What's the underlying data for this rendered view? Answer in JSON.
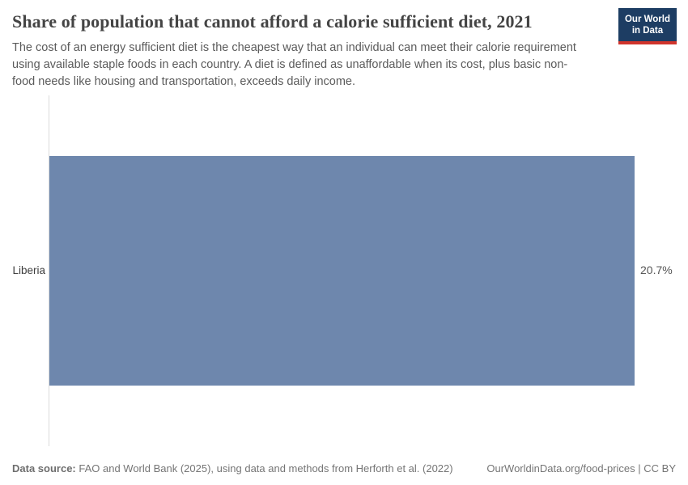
{
  "header": {
    "title": "Share of population that cannot afford a calorie sufficient diet, 2021",
    "subtitle": "The cost of an energy sufficient diet is the cheapest way that an individual can meet their calorie requirement using available staple foods in each country. A diet is defined as unaffordable when its cost, plus basic non-food needs like housing and transportation, exceeds daily income.",
    "logo": {
      "line1": "Our World",
      "line2": "in Data"
    }
  },
  "chart_data": {
    "type": "bar",
    "orientation": "horizontal",
    "title": "Share of population that cannot afford a calorie sufficient diet, 2021",
    "categories": [
      "Liberia"
    ],
    "values": [
      20.7
    ],
    "value_labels": [
      "20.7%"
    ],
    "unit": "%",
    "xlim": [
      0,
      20.7
    ],
    "grid": false,
    "legend": false,
    "xlabel": "",
    "ylabel": ""
  },
  "footer": {
    "source_label": "Data source:",
    "source_text": " FAO and World Bank (2025), using data and methods from Herforth et al. (2022)",
    "link_text": "OurWorldinData.org/food-prices | CC BY"
  },
  "colors": {
    "bar": "#6e87ad",
    "axis_line": "#dbdbdb",
    "logo_background": "#1d3d63",
    "logo_stripe": "#d0342c"
  }
}
